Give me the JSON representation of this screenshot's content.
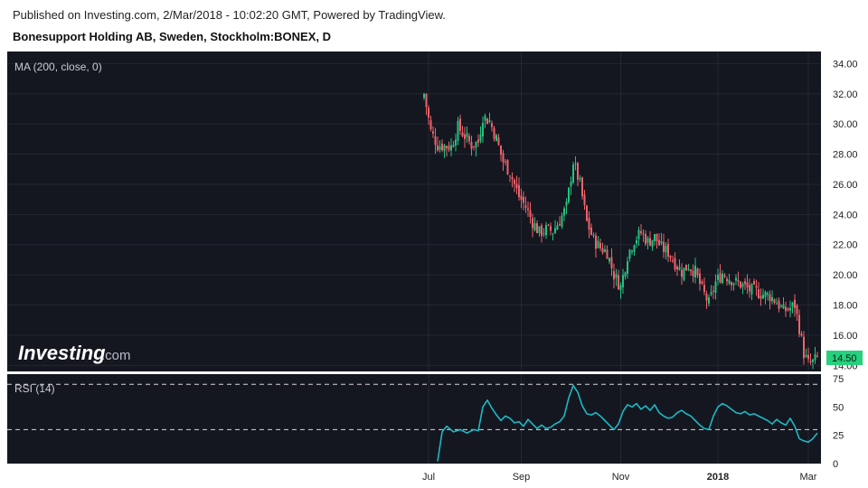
{
  "header": {
    "published": "Published on Investing.com, 2/Mar/2018 - 10:02:20 GMT, Powered by TradingView.",
    "title": "Bonesupport Holding AB, Sweden, Stockholm:BONEX, D"
  },
  "watermark": {
    "brand": "Investing",
    "suffix": ".com"
  },
  "colors": {
    "background": "#141720",
    "grid": "#232733",
    "up": "#26c281",
    "down": "#f0626a",
    "rsi_line": "#1eb8c4",
    "price_tag": "#26d07c"
  },
  "chart_data": [
    {
      "type": "candlestick",
      "indicator_label": "MA (200, close, 0)",
      "y_ticks": [
        "34.00",
        "32.00",
        "30.00",
        "28.00",
        "26.00",
        "24.00",
        "22.00",
        "20.00",
        "18.00",
        "16.00",
        "14.00"
      ],
      "ylim": [
        13.6,
        34.8
      ],
      "x_ticks": [
        "Jul",
        "Sep",
        "Nov",
        "2018",
        "Mar"
      ],
      "last_price": "14.50",
      "anchors": [
        [
          0,
          32.0
        ],
        [
          3,
          29.5
        ],
        [
          6,
          28.6
        ],
        [
          12,
          28.5
        ],
        [
          15,
          29.8
        ],
        [
          18,
          29.2
        ],
        [
          21,
          28.6
        ],
        [
          24,
          28.8
        ],
        [
          26,
          30.5
        ],
        [
          29,
          30.2
        ],
        [
          32,
          29.0
        ],
        [
          35,
          27.5
        ],
        [
          38,
          26.8
        ],
        [
          42,
          25.2
        ],
        [
          45,
          24.5
        ],
        [
          48,
          23.5
        ],
        [
          51,
          22.8
        ],
        [
          54,
          23.0
        ],
        [
          57,
          22.9
        ],
        [
          60,
          23.6
        ],
        [
          63,
          24.5
        ],
        [
          66,
          27.5
        ],
        [
          69,
          26.0
        ],
        [
          72,
          23.5
        ],
        [
          75,
          22.3
        ],
        [
          78,
          21.8
        ],
        [
          81,
          21.5
        ],
        [
          84,
          20.0
        ],
        [
          87,
          19.2
        ],
        [
          90,
          21.3
        ],
        [
          93,
          22.3
        ],
        [
          96,
          22.8
        ],
        [
          99,
          22.2
        ],
        [
          102,
          22.5
        ],
        [
          105,
          21.8
        ],
        [
          108,
          21.5
        ],
        [
          111,
          20.8
        ],
        [
          114,
          20.2
        ],
        [
          117,
          20.6
        ],
        [
          120,
          20.2
        ],
        [
          123,
          19.0
        ],
        [
          126,
          18.1
        ],
        [
          129,
          19.5
        ],
        [
          132,
          20.1
        ],
        [
          135,
          19.8
        ],
        [
          138,
          19.5
        ],
        [
          141,
          19.3
        ],
        [
          144,
          19.0
        ],
        [
          147,
          18.9
        ],
        [
          150,
          18.7
        ],
        [
          153,
          18.6
        ],
        [
          156,
          18.2
        ],
        [
          159,
          17.6
        ],
        [
          162,
          17.8
        ],
        [
          164,
          18.0
        ],
        [
          166,
          16.5
        ],
        [
          168,
          14.8
        ],
        [
          170,
          14.1
        ],
        [
          172,
          14.2
        ],
        [
          174,
          14.5
        ]
      ]
    },
    {
      "type": "line",
      "indicator_label": "RSI (14)",
      "y_ticks": [
        "75",
        "50",
        "25",
        "0"
      ],
      "ylim": [
        0,
        75
      ],
      "levels": [
        70,
        30
      ],
      "points": [
        [
          6,
          2
        ],
        [
          8,
          28
        ],
        [
          10,
          33
        ],
        [
          13,
          28
        ],
        [
          16,
          30
        ],
        [
          19,
          27
        ],
        [
          22,
          30
        ],
        [
          24,
          29
        ],
        [
          26,
          50
        ],
        [
          28,
          56
        ],
        [
          30,
          49
        ],
        [
          32,
          43
        ],
        [
          34,
          38
        ],
        [
          36,
          42
        ],
        [
          38,
          40
        ],
        [
          40,
          36
        ],
        [
          42,
          37
        ],
        [
          44,
          33
        ],
        [
          46,
          39
        ],
        [
          48,
          35
        ],
        [
          50,
          31
        ],
        [
          52,
          34
        ],
        [
          54,
          31
        ],
        [
          56,
          32
        ],
        [
          58,
          35
        ],
        [
          60,
          37
        ],
        [
          62,
          42
        ],
        [
          64,
          58
        ],
        [
          66,
          69
        ],
        [
          68,
          63
        ],
        [
          70,
          51
        ],
        [
          72,
          44
        ],
        [
          74,
          43
        ],
        [
          76,
          45
        ],
        [
          78,
          42
        ],
        [
          80,
          38
        ],
        [
          82,
          34
        ],
        [
          84,
          30
        ],
        [
          86,
          35
        ],
        [
          88,
          46
        ],
        [
          90,
          52
        ],
        [
          92,
          50
        ],
        [
          94,
          53
        ],
        [
          96,
          48
        ],
        [
          98,
          51
        ],
        [
          100,
          47
        ],
        [
          102,
          52
        ],
        [
          104,
          45
        ],
        [
          106,
          42
        ],
        [
          108,
          40
        ],
        [
          110,
          41
        ],
        [
          112,
          45
        ],
        [
          114,
          47
        ],
        [
          116,
          44
        ],
        [
          118,
          42
        ],
        [
          120,
          38
        ],
        [
          122,
          34
        ],
        [
          124,
          31
        ],
        [
          126,
          30
        ],
        [
          128,
          42
        ],
        [
          130,
          50
        ],
        [
          132,
          53
        ],
        [
          134,
          51
        ],
        [
          136,
          48
        ],
        [
          138,
          45
        ],
        [
          140,
          44
        ],
        [
          142,
          46
        ],
        [
          144,
          43
        ],
        [
          146,
          44
        ],
        [
          148,
          42
        ],
        [
          150,
          40
        ],
        [
          152,
          38
        ],
        [
          154,
          35
        ],
        [
          156,
          39
        ],
        [
          158,
          36
        ],
        [
          160,
          34
        ],
        [
          162,
          40
        ],
        [
          164,
          33
        ],
        [
          166,
          22
        ],
        [
          168,
          20
        ],
        [
          170,
          19
        ],
        [
          172,
          22
        ],
        [
          174,
          27
        ]
      ]
    }
  ]
}
